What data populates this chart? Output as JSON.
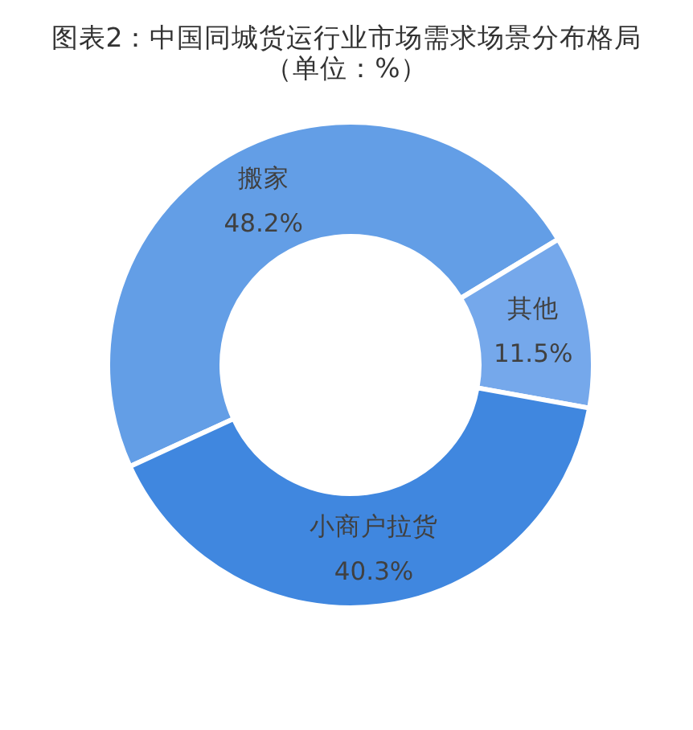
{
  "chart_data": {
    "type": "donut",
    "title": "图表2：中国同城货运行业市场需求场景分布格局（单位：%）",
    "categories": [
      "搬家",
      "其他",
      "小商户拉货"
    ],
    "values": [
      48.2,
      11.5,
      40.3
    ],
    "value_labels": [
      "48.2%",
      "11.5%",
      "40.3%"
    ],
    "colors": [
      "#639ee6",
      "#75a8eb",
      "#4087df"
    ]
  }
}
